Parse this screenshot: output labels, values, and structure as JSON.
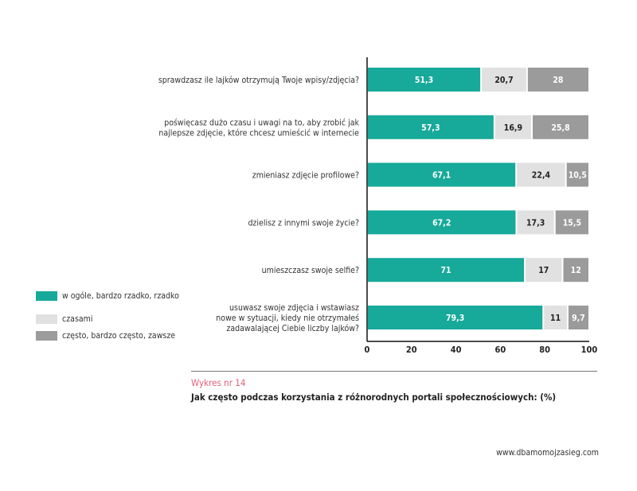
{
  "chart_data": {
    "type": "bar",
    "stacked": true,
    "orientation": "horizontal",
    "categories": [
      [
        "sprawdzasz ile lajków otrzymują Twoje wpisy/zdjęcia?"
      ],
      [
        "poświęcasz dużo czasu i uwagi na to, aby zrobić jak",
        "najlepsze zdjęcie, które chcesz umieścić w internecie"
      ],
      [
        "zmieniasz zdjęcie profilowe?"
      ],
      [
        "dzielisz z innymi swoje życie?"
      ],
      [
        "umieszczasz swoje selfie?"
      ],
      [
        "usuwasz swoje zdjęcia i wstawiasz",
        "nowe w sytuacji, kiedy nie otrzymałeś",
        "zadawalającej Ciebie liczby lajków?"
      ]
    ],
    "series": [
      {
        "name": "w ogóle, bardzo rzadko, rzadko",
        "color": "#17a999",
        "label_color": "#ffffff",
        "values": [
          51.3,
          57.3,
          67.1,
          67.2,
          71,
          79.3
        ],
        "labels": [
          "51,3",
          "57,3",
          "67,1",
          "67,2",
          "71",
          "79,3"
        ]
      },
      {
        "name": "czasami",
        "color": "#e1e1e1",
        "label_color": "#222222",
        "values": [
          20.7,
          16.9,
          22.4,
          17.3,
          17,
          11
        ],
        "labels": [
          "20,7",
          "16,9",
          "22,4",
          "17,3",
          "17",
          "11"
        ]
      },
      {
        "name": "często, bardzo często, zawsze",
        "color": "#9b9b9b",
        "label_color": "#ffffff",
        "values": [
          28,
          25.8,
          10.5,
          15.5,
          12,
          9.7
        ],
        "labels": [
          "28",
          "25,8",
          "10,5",
          "15,5",
          "12",
          "9,7"
        ]
      }
    ],
    "xlim": [
      0,
      100
    ],
    "xticks": [
      "0",
      "20",
      "40",
      "60",
      "80",
      "100"
    ],
    "legend_position": "left",
    "grid": false
  },
  "caption": {
    "number": "Wykres nr 14",
    "title": "Jak często podczas korzystania z różnorodnych portali społecznościowych: (%)"
  },
  "footer": {
    "url": "www.dbamomojzasieg.com"
  }
}
